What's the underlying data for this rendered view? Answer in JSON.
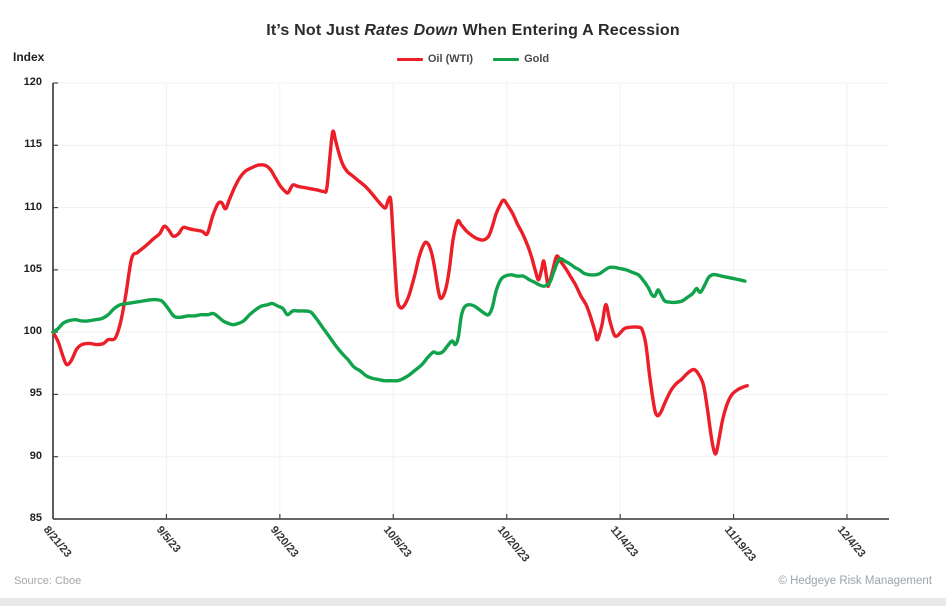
{
  "title": {
    "prefix": "It’s Not Just ",
    "italic": "Rates Down",
    "suffix": " When Entering A Recession"
  },
  "y_axis_label": "Index",
  "source": "Source: Cboe",
  "copyright": "© Hedgeye Risk Management",
  "legend": [
    {
      "label": "Oil (WTI)",
      "color": "#ec1e28"
    },
    {
      "label": "Gold",
      "color": "#10a34c"
    }
  ],
  "chart_data": {
    "type": "line",
    "title": "It’s Not Just Rates Down When Entering A Recession",
    "xlabel": "",
    "ylabel": "Index",
    "ylim": [
      85,
      120
    ],
    "yticks": [
      85,
      90,
      95,
      100,
      105,
      110,
      115,
      120
    ],
    "x_tick_labels": [
      "8/21/23",
      "9/5/23",
      "9/20/23",
      "10/5/23",
      "10/20/23",
      "11/4/23",
      "11/19/23",
      "12/4/23"
    ],
    "x_tick_days": [
      0,
      15,
      30,
      45,
      60,
      75,
      90,
      105
    ],
    "x_max_day": 110.6,
    "grid": true,
    "legend_position": "top-center",
    "x_unit": "days since 8/21/23",
    "series": [
      {
        "name": "Oil (WTI)",
        "color": "#ec1e28",
        "points": [
          [
            0,
            100
          ],
          [
            0.7,
            99.2
          ],
          [
            1.3,
            98.1
          ],
          [
            1.8,
            97.4
          ],
          [
            2.4,
            97.7
          ],
          [
            3.1,
            98.6
          ],
          [
            3.8,
            99.0
          ],
          [
            4.8,
            99.1
          ],
          [
            5.8,
            99.0
          ],
          [
            6.7,
            99.1
          ],
          [
            7.3,
            99.4
          ],
          [
            8.2,
            99.5
          ],
          [
            8.9,
            100.7
          ],
          [
            9.6,
            102.9
          ],
          [
            10.4,
            105.9
          ],
          [
            11.2,
            106.4
          ],
          [
            12.2,
            106.9
          ],
          [
            13.3,
            107.5
          ],
          [
            14.1,
            107.9
          ],
          [
            14.7,
            108.5
          ],
          [
            15.3,
            108.2
          ],
          [
            15.9,
            107.7
          ],
          [
            16.6,
            107.9
          ],
          [
            17.2,
            108.4
          ],
          [
            18,
            108.3
          ],
          [
            18.8,
            108.2
          ],
          [
            19.7,
            108.1
          ],
          [
            20.4,
            107.9
          ],
          [
            21.1,
            109.3
          ],
          [
            21.8,
            110.3
          ],
          [
            22.3,
            110.4
          ],
          [
            22.8,
            109.9
          ],
          [
            23.3,
            110.6
          ],
          [
            24,
            111.6
          ],
          [
            24.7,
            112.4
          ],
          [
            25.4,
            112.9
          ],
          [
            26.3,
            113.2
          ],
          [
            27.1,
            113.4
          ],
          [
            28,
            113.4
          ],
          [
            28.7,
            113.1
          ],
          [
            29.4,
            112.4
          ],
          [
            30.1,
            111.7
          ],
          [
            30.7,
            111.3
          ],
          [
            31.1,
            111.2
          ],
          [
            31.7,
            111.8
          ],
          [
            32.4,
            111.7
          ],
          [
            33.3,
            111.6
          ],
          [
            34.2,
            111.5
          ],
          [
            35,
            111.4
          ],
          [
            35.8,
            111.3
          ],
          [
            36.2,
            111.5
          ],
          [
            36.6,
            114.0
          ],
          [
            37,
            116.1
          ],
          [
            37.4,
            115.3
          ],
          [
            37.8,
            114.4
          ],
          [
            38.3,
            113.5
          ],
          [
            38.9,
            112.9
          ],
          [
            39.5,
            112.6
          ],
          [
            40.3,
            112.2
          ],
          [
            41.3,
            111.7
          ],
          [
            42.2,
            111.1
          ],
          [
            43,
            110.5
          ],
          [
            43.6,
            110.1
          ],
          [
            44,
            110.0
          ],
          [
            44.4,
            110.7
          ],
          [
            44.7,
            110.4
          ],
          [
            45.1,
            106.5
          ],
          [
            45.5,
            102.8
          ],
          [
            45.9,
            102.0
          ],
          [
            46.4,
            102.1
          ],
          [
            47.1,
            103.0
          ],
          [
            47.8,
            104.5
          ],
          [
            48.4,
            106.0
          ],
          [
            49,
            107.0
          ],
          [
            49.4,
            107.2
          ],
          [
            49.9,
            106.7
          ],
          [
            50.4,
            105.4
          ],
          [
            50.9,
            103.5
          ],
          [
            51.3,
            102.7
          ],
          [
            51.9,
            103.4
          ],
          [
            52.4,
            105.0
          ],
          [
            52.9,
            107.4
          ],
          [
            53.5,
            108.9
          ],
          [
            54,
            108.6
          ],
          [
            54.7,
            108.1
          ],
          [
            55.3,
            107.8
          ],
          [
            56.1,
            107.5
          ],
          [
            56.9,
            107.4
          ],
          [
            57.6,
            107.7
          ],
          [
            58.1,
            108.5
          ],
          [
            58.6,
            109.5
          ],
          [
            59.2,
            110.3
          ],
          [
            59.6,
            110.6
          ],
          [
            60.1,
            110.2
          ],
          [
            60.8,
            109.5
          ],
          [
            61.4,
            108.7
          ],
          [
            62.1,
            107.9
          ],
          [
            62.8,
            106.9
          ],
          [
            63.3,
            106.0
          ],
          [
            63.8,
            104.9
          ],
          [
            64.2,
            104.2
          ],
          [
            64.6,
            105.0
          ],
          [
            64.9,
            105.7
          ],
          [
            65.3,
            104.3
          ],
          [
            65.5,
            103.7
          ],
          [
            66.1,
            105.0
          ],
          [
            66.6,
            106.1
          ],
          [
            67.1,
            105.7
          ],
          [
            67.8,
            105.1
          ],
          [
            68.5,
            104.4
          ],
          [
            69.1,
            103.8
          ],
          [
            69.8,
            102.9
          ],
          [
            70.5,
            102.2
          ],
          [
            71.1,
            101.2
          ],
          [
            71.7,
            100.0
          ],
          [
            72,
            99.4
          ],
          [
            72.6,
            100.6
          ],
          [
            73.1,
            102.2
          ],
          [
            73.6,
            101.0
          ],
          [
            74.2,
            99.8
          ],
          [
            74.6,
            99.7
          ],
          [
            75.1,
            100.0
          ],
          [
            75.6,
            100.3
          ],
          [
            76.4,
            100.4
          ],
          [
            77.4,
            100.4
          ],
          [
            77.9,
            100.2
          ],
          [
            78.4,
            99.0
          ],
          [
            78.9,
            96.5
          ],
          [
            79.5,
            94.0
          ],
          [
            79.9,
            93.3
          ],
          [
            80.4,
            93.6
          ],
          [
            80.9,
            94.3
          ],
          [
            81.6,
            95.2
          ],
          [
            82.3,
            95.8
          ],
          [
            83.1,
            96.2
          ],
          [
            83.9,
            96.7
          ],
          [
            84.7,
            97.0
          ],
          [
            85.3,
            96.7
          ],
          [
            86,
            95.8
          ],
          [
            86.5,
            94.0
          ],
          [
            87,
            91.8
          ],
          [
            87.4,
            90.5
          ],
          [
            87.7,
            90.3
          ],
          [
            88.1,
            91.5
          ],
          [
            88.6,
            93.1
          ],
          [
            89.2,
            94.3
          ],
          [
            89.8,
            95.0
          ],
          [
            90.6,
            95.4
          ],
          [
            91.3,
            95.6
          ],
          [
            91.8,
            95.7
          ]
        ]
      },
      {
        "name": "Gold",
        "color": "#10a34c",
        "points": [
          [
            0,
            100
          ],
          [
            0.7,
            100.3
          ],
          [
            1.3,
            100.7
          ],
          [
            2,
            100.9
          ],
          [
            2.9,
            101.0
          ],
          [
            3.8,
            100.9
          ],
          [
            4.6,
            100.9
          ],
          [
            5.6,
            101.0
          ],
          [
            6.5,
            101.1
          ],
          [
            7.3,
            101.4
          ],
          [
            8.1,
            101.9
          ],
          [
            8.9,
            102.2
          ],
          [
            9.8,
            102.3
          ],
          [
            10.9,
            102.4
          ],
          [
            11.9,
            102.5
          ],
          [
            12.9,
            102.6
          ],
          [
            13.8,
            102.6
          ],
          [
            14.4,
            102.5
          ],
          [
            15.1,
            102.0
          ],
          [
            15.8,
            101.4
          ],
          [
            16.3,
            101.2
          ],
          [
            17,
            101.2
          ],
          [
            17.8,
            101.3
          ],
          [
            18.7,
            101.3
          ],
          [
            19.6,
            101.4
          ],
          [
            20.5,
            101.4
          ],
          [
            21.2,
            101.5
          ],
          [
            21.9,
            101.2
          ],
          [
            22.5,
            100.9
          ],
          [
            23.2,
            100.7
          ],
          [
            23.9,
            100.6
          ],
          [
            24.5,
            100.7
          ],
          [
            25.2,
            100.9
          ],
          [
            26,
            101.4
          ],
          [
            26.8,
            101.8
          ],
          [
            27.6,
            102.1
          ],
          [
            28.4,
            102.2
          ],
          [
            29,
            102.3
          ],
          [
            29.7,
            102.1
          ],
          [
            30.4,
            101.9
          ],
          [
            31,
            101.4
          ],
          [
            31.7,
            101.7
          ],
          [
            32.5,
            101.7
          ],
          [
            33.3,
            101.7
          ],
          [
            34.1,
            101.6
          ],
          [
            34.8,
            101.1
          ],
          [
            35.4,
            100.6
          ],
          [
            36.1,
            100.0
          ],
          [
            36.7,
            99.5
          ],
          [
            37.4,
            98.9
          ],
          [
            38.2,
            98.3
          ],
          [
            39,
            97.8
          ],
          [
            39.8,
            97.2
          ],
          [
            40.6,
            96.9
          ],
          [
            41.4,
            96.5
          ],
          [
            42.2,
            96.3
          ],
          [
            43,
            96.2
          ],
          [
            43.8,
            96.1
          ],
          [
            44.7,
            96.1
          ],
          [
            45.6,
            96.1
          ],
          [
            46.4,
            96.3
          ],
          [
            47.2,
            96.6
          ],
          [
            48,
            97.0
          ],
          [
            48.8,
            97.4
          ],
          [
            49.6,
            98.0
          ],
          [
            50.3,
            98.4
          ],
          [
            50.8,
            98.3
          ],
          [
            51.5,
            98.4
          ],
          [
            52.3,
            99.0
          ],
          [
            52.8,
            99.3
          ],
          [
            53.2,
            99.0
          ],
          [
            53.6,
            99.6
          ],
          [
            54,
            101.3
          ],
          [
            54.4,
            102.0
          ],
          [
            55,
            102.2
          ],
          [
            55.7,
            102.1
          ],
          [
            56.4,
            101.8
          ],
          [
            57.1,
            101.5
          ],
          [
            57.6,
            101.4
          ],
          [
            58.1,
            102.0
          ],
          [
            58.6,
            103.3
          ],
          [
            59.2,
            104.2
          ],
          [
            59.8,
            104.5
          ],
          [
            60.6,
            104.6
          ],
          [
            61.4,
            104.5
          ],
          [
            62.2,
            104.5
          ],
          [
            63,
            104.2
          ],
          [
            63.7,
            104.0
          ],
          [
            64.3,
            103.8
          ],
          [
            65,
            103.7
          ],
          [
            65.7,
            104.0
          ],
          [
            66.2,
            104.8
          ],
          [
            66.7,
            105.6
          ],
          [
            67.1,
            105.9
          ],
          [
            67.7,
            105.7
          ],
          [
            68.3,
            105.5
          ],
          [
            69,
            105.2
          ],
          [
            69.6,
            105.0
          ],
          [
            70.3,
            104.7
          ],
          [
            71,
            104.6
          ],
          [
            71.7,
            104.6
          ],
          [
            72.3,
            104.7
          ],
          [
            73,
            105.0
          ],
          [
            73.6,
            105.2
          ],
          [
            74.3,
            105.2
          ],
          [
            75,
            105.1
          ],
          [
            75.8,
            105.0
          ],
          [
            76.6,
            104.8
          ],
          [
            77.4,
            104.6
          ],
          [
            78,
            104.2
          ],
          [
            78.7,
            103.6
          ],
          [
            79.2,
            103.0
          ],
          [
            79.6,
            102.9
          ],
          [
            80,
            103.4
          ],
          [
            80.4,
            103.0
          ],
          [
            80.9,
            102.5
          ],
          [
            81.6,
            102.4
          ],
          [
            82.4,
            102.4
          ],
          [
            83.2,
            102.5
          ],
          [
            83.9,
            102.8
          ],
          [
            84.6,
            103.1
          ],
          [
            85.1,
            103.5
          ],
          [
            85.6,
            103.2
          ],
          [
            86.2,
            103.8
          ],
          [
            86.7,
            104.4
          ],
          [
            87.2,
            104.6
          ],
          [
            87.7,
            104.6
          ],
          [
            88.4,
            104.5
          ],
          [
            89.2,
            104.4
          ],
          [
            90,
            104.3
          ],
          [
            90.8,
            104.2
          ],
          [
            91.5,
            104.1
          ]
        ]
      }
    ]
  }
}
